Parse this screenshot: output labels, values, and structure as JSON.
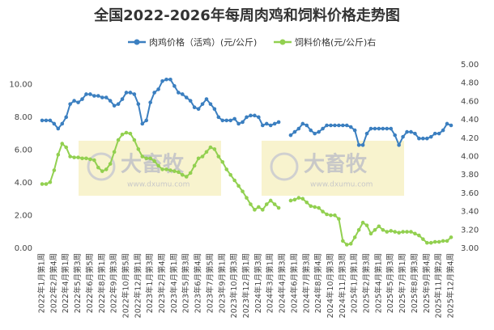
{
  "chart_data": {
    "type": "line",
    "title": "全国2022-2026年每周肉鸡和饲料价格走势图",
    "categories": [
      "2022年1月第1周",
      null,
      null,
      "2022年2月第4周",
      null,
      null,
      "2022年4月第1周",
      null,
      null,
      "2022年5月第3周",
      null,
      null,
      "2022年6月第5周",
      null,
      null,
      "2022年8月第1周",
      null,
      null,
      "2022年9月第3周",
      null,
      null,
      "2022年10月第5周",
      null,
      null,
      "2022年12月第1周",
      null,
      null,
      "2023年1月第3周",
      null,
      null,
      "2023年2月第4周",
      null,
      null,
      "2023年4月第1周",
      null,
      null,
      "2023年5月第3周",
      null,
      null,
      "2023年6月第4周",
      null,
      null,
      "2023年7月第5周",
      null,
      null,
      "2023年9月第1周",
      null,
      null,
      "2023年10月第3周",
      null,
      null,
      "2023年12月第1周",
      null,
      null,
      "2024年1月第3周",
      null,
      null,
      "2024年3月第1周",
      null,
      null,
      "2024年4月第3周",
      null,
      null,
      "2024年6月第1周",
      null,
      null,
      "2024年7月第3周",
      null,
      null,
      "2024年8月第4周",
      null,
      null,
      "2024年10月第3周",
      null,
      null,
      "2024年11月第3周",
      null,
      null,
      "2025年1月第1周",
      null,
      null,
      "2025年2月第3周",
      null,
      null,
      "2025年4月第1周",
      null,
      null,
      "2025年5月第3周",
      null,
      null,
      "2025年7月第1周",
      null,
      null,
      "2025年8月第3周",
      null,
      null,
      "2025年9月第4周",
      null,
      null,
      "2025年11月第2周",
      null,
      null,
      "2025年12月第4周"
    ],
    "series": [
      {
        "name": "肉鸡价格（活鸡）(元/公斤)",
        "color": "#3b7fc0",
        "axis": "y",
        "values": [
          7.8,
          7.8,
          7.8,
          7.6,
          7.3,
          7.6,
          8.0,
          8.8,
          9.0,
          8.9,
          9.1,
          9.4,
          9.4,
          9.3,
          9.3,
          9.2,
          9.2,
          9.0,
          8.7,
          8.8,
          9.1,
          9.5,
          9.5,
          9.4,
          8.8,
          7.6,
          7.8,
          8.9,
          9.5,
          9.7,
          10.2,
          10.3,
          10.3,
          9.9,
          9.5,
          9.4,
          9.2,
          9.0,
          8.6,
          8.5,
          8.8,
          9.1,
          8.8,
          8.5,
          8.0,
          7.8,
          7.8,
          7.8,
          7.9,
          7.6,
          7.7,
          8.0,
          8.1,
          8.1,
          8.0,
          7.5,
          7.6,
          7.5,
          7.6,
          7.7,
          null,
          null,
          6.9,
          7.1,
          7.3,
          7.6,
          7.5,
          7.2,
          7.0,
          7.1,
          7.3,
          7.5,
          7.5,
          7.5,
          7.5,
          7.5,
          7.5,
          7.4,
          7.2,
          6.3,
          6.3,
          7.0,
          7.3,
          7.3,
          7.3,
          7.3,
          7.3,
          7.3,
          6.9,
          6.3,
          6.8,
          7.1,
          7.1,
          7.0,
          6.7,
          6.7,
          6.7,
          6.8,
          7.0,
          7.0,
          7.2,
          7.6,
          7.5
        ]
      },
      {
        "name": "饲料价格(元/公斤)右",
        "color": "#92d050",
        "axis": "y2",
        "values": [
          3.7,
          3.7,
          3.72,
          3.85,
          4.02,
          4.14,
          4.1,
          4.0,
          3.99,
          3.99,
          3.98,
          3.98,
          3.97,
          3.96,
          3.88,
          3.84,
          3.86,
          3.92,
          4.05,
          4.18,
          4.24,
          4.26,
          4.25,
          4.18,
          4.08,
          4.0,
          3.98,
          3.98,
          3.95,
          3.9,
          3.86,
          3.86,
          3.85,
          3.84,
          3.83,
          3.8,
          3.78,
          3.82,
          3.9,
          3.98,
          4.0,
          4.05,
          4.1,
          4.08,
          4.0,
          3.94,
          3.86,
          3.8,
          3.74,
          3.68,
          3.62,
          3.55,
          3.48,
          3.42,
          3.45,
          3.42,
          3.48,
          3.52,
          3.48,
          3.44,
          null,
          null,
          3.52,
          3.53,
          3.55,
          3.54,
          3.5,
          3.46,
          3.45,
          3.44,
          3.4,
          3.37,
          3.36,
          3.36,
          3.32,
          3.08,
          3.04,
          3.05,
          3.12,
          3.2,
          3.28,
          3.25,
          3.16,
          3.2,
          3.24,
          3.2,
          3.18,
          3.19,
          3.18,
          3.17,
          3.18,
          3.18,
          3.18,
          3.16,
          3.14,
          3.1,
          3.06,
          3.06,
          3.07,
          3.07,
          3.08,
          3.08,
          3.12
        ]
      }
    ],
    "ylim": [
      0,
      11.2
    ],
    "yticks": [
      {
        "value": 0,
        "label": "0.00"
      },
      {
        "value": 2,
        "label": "2.00"
      },
      {
        "value": 4,
        "label": "4.00"
      },
      {
        "value": 6,
        "label": "6.00"
      },
      {
        "value": 8,
        "label": "8.00"
      },
      {
        "value": 10,
        "label": "10.00"
      }
    ],
    "y2lim": [
      3,
      5
    ],
    "y2ticks": [
      {
        "value": 3,
        "label": "3.00"
      },
      {
        "value": 3.2,
        "label": "3.20"
      },
      {
        "value": 3.4,
        "label": "3.40"
      },
      {
        "value": 3.6,
        "label": "3.60"
      },
      {
        "value": 3.8,
        "label": "3.80"
      },
      {
        "value": 4,
        "label": "4.00"
      },
      {
        "value": 4.2,
        "label": "4.20"
      },
      {
        "value": 4.4,
        "label": "4.40"
      },
      {
        "value": 4.6,
        "label": "4.60"
      },
      {
        "value": 4.8,
        "label": "4.80"
      },
      {
        "value": 5,
        "label": "5.00"
      }
    ],
    "legend": "top",
    "watermarks": [
      {
        "text": "大畜牧",
        "url": "www.dxumu.com"
      },
      {
        "text": "大畜牧",
        "url": "www.dxumu.com"
      }
    ]
  }
}
